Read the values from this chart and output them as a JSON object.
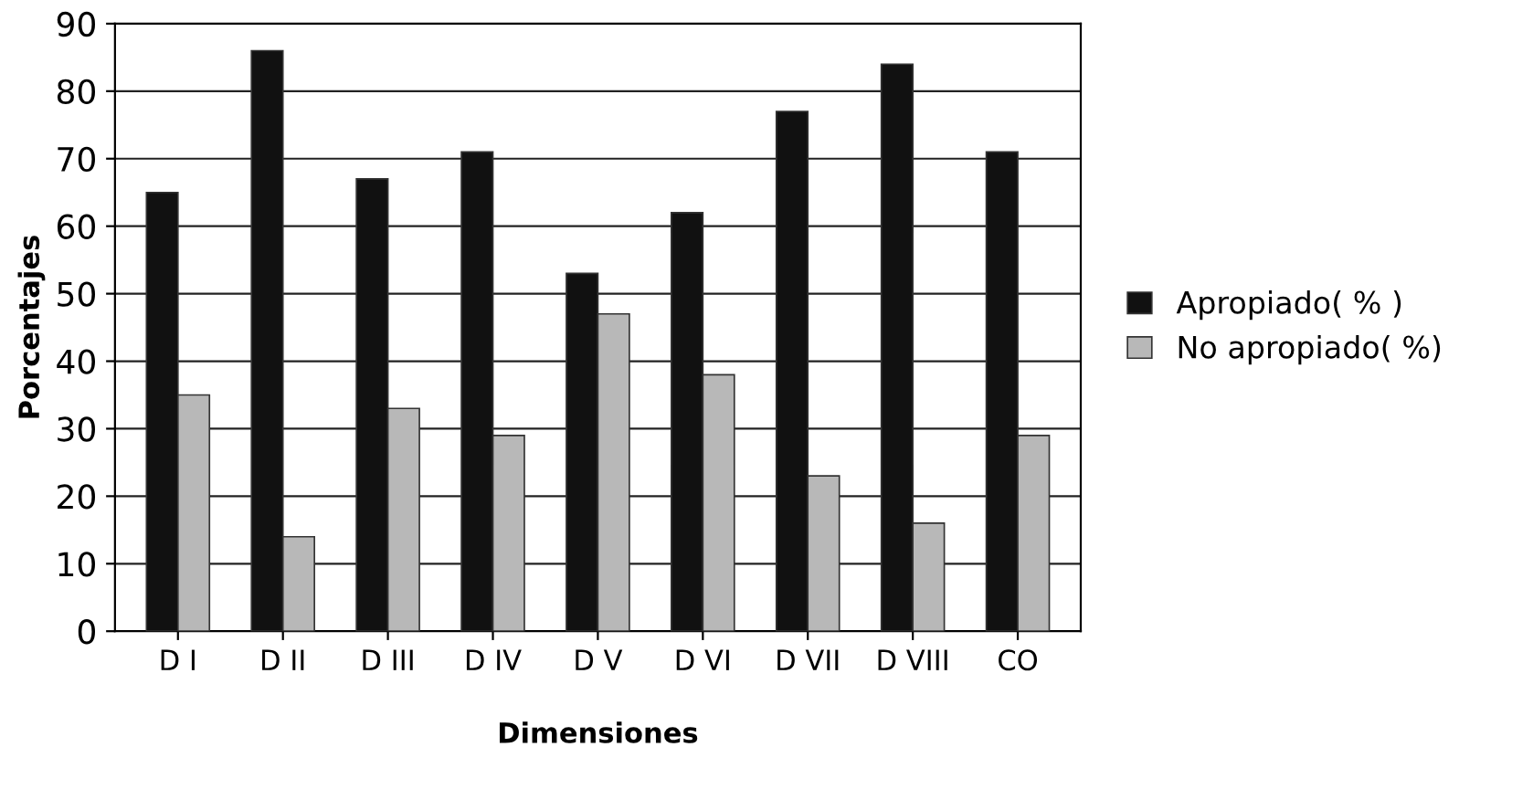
{
  "chart_data": {
    "type": "bar",
    "xlabel": "Dimensiones",
    "ylabel": "Porcentajes",
    "categories": [
      "D I",
      "D II",
      "D III",
      "D IV",
      "D V",
      "D VI",
      "D VII",
      "D VIII",
      "CO"
    ],
    "series": [
      {
        "name": "Apropiado( % )",
        "color": "#111111",
        "values": [
          65,
          86,
          67,
          71,
          53,
          62,
          77,
          84,
          71
        ]
      },
      {
        "name": "No apropiado( %)",
        "color": "#b8b8b8",
        "values": [
          35,
          14,
          33,
          29,
          47,
          38,
          23,
          16,
          29
        ]
      }
    ],
    "ylim": [
      0,
      90
    ],
    "yticks": [
      0,
      10,
      20,
      30,
      40,
      50,
      60,
      70,
      80,
      90
    ],
    "grid": "y",
    "legend": "right"
  }
}
